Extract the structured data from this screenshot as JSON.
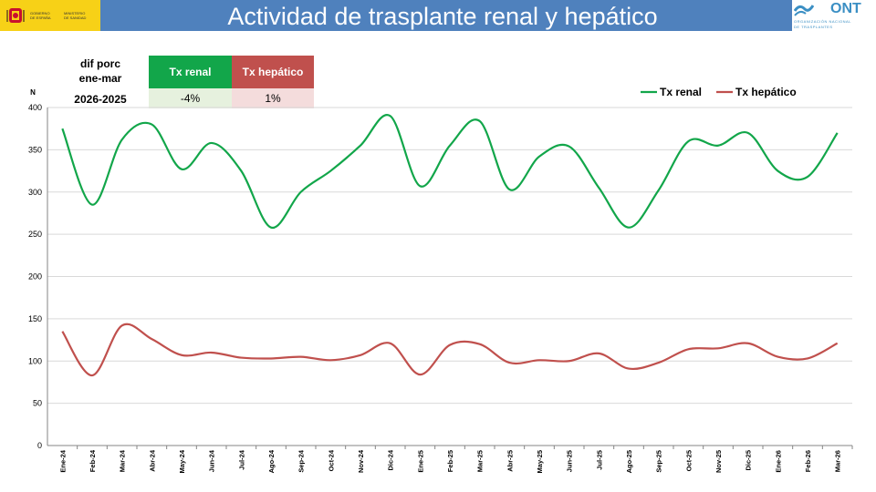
{
  "header": {
    "title": "Actividad de trasplante renal y hepático",
    "gov_logo": {
      "line1": "GOBIERNO",
      "line2": "DE ESPAÑA",
      "line3": "MINISTERIO",
      "line4": "DE SANIDAD"
    },
    "ont_logo": {
      "name": "ONT",
      "sub1": "ORGANIZACIÓN NACIONAL",
      "sub2": "DE TRASPLANTES"
    },
    "colors": {
      "bar": "#4f81bd",
      "gov": "#f7d117"
    }
  },
  "summary": {
    "label_line1": "dif porc",
    "label_line2": "ene-mar",
    "years": "2026-2025",
    "columns": [
      {
        "name": "Tx renal",
        "value": "-4%",
        "header_color": "#12a64a",
        "value_bg": "#e6f1de"
      },
      {
        "name": "Tx hepático",
        "value": "1%",
        "header_color": "#c0504d",
        "value_bg": "#f4dcdc"
      }
    ]
  },
  "chart_data": {
    "type": "line",
    "ylabel": "N",
    "ylim": [
      0,
      400
    ],
    "yticks": [
      0,
      50,
      100,
      150,
      200,
      250,
      300,
      350,
      400
    ],
    "categories": [
      "Ene-24",
      "Feb-24",
      "Mar-24",
      "Abr-24",
      "May-24",
      "Jun-24",
      "Jul-24",
      "Ago-24",
      "Sep-24",
      "Oct-24",
      "Nov-24",
      "Dic-24",
      "Ene-25",
      "Feb-25",
      "Mar-25",
      "Abr-25",
      "May-25",
      "Jun-25",
      "Jul-25",
      "Ago-25",
      "Sep-25",
      "Oct-25",
      "Nov-25",
      "Dic-25",
      "Ene-26",
      "Feb-26",
      "Mar-26"
    ],
    "series": [
      {
        "name": "Tx renal",
        "color": "#12a64a",
        "values": [
          375,
          285,
          362,
          380,
          327,
          358,
          325,
          258,
          300,
          325,
          355,
          390,
          307,
          355,
          384,
          303,
          342,
          354,
          305,
          258,
          302,
          360,
          355,
          370,
          325,
          318,
          370
        ]
      },
      {
        "name": "Tx hepático",
        "color": "#c0504d",
        "values": [
          135,
          83,
          142,
          126,
          107,
          110,
          104,
          103,
          105,
          101,
          107,
          121,
          84,
          119,
          120,
          98,
          101,
          100,
          109,
          91,
          98,
          114,
          115,
          121,
          105,
          103,
          121
        ]
      }
    ],
    "legend": "top-right"
  }
}
